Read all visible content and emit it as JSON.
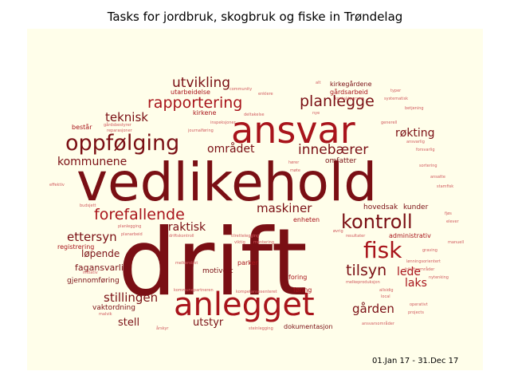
{
  "title": "Tasks for jordbruk, skogbruk og fiske in Trøndelag",
  "date_range": "01.Jan 17 - 31.Dec 17",
  "colors": {
    "background": "#fffeea",
    "dark": "#7a0f14",
    "mid": "#a8141b",
    "light": "#d05a5e"
  },
  "words": [
    {
      "text": "drift"
    },
    {
      "text": "vedlikehold"
    },
    {
      "text": "ansvar"
    },
    {
      "text": "anlegget"
    },
    {
      "text": "oppfølging"
    },
    {
      "text": "kontroll"
    },
    {
      "text": "fisk"
    },
    {
      "text": "forefallende"
    },
    {
      "text": "rapportering"
    },
    {
      "text": "planlegge"
    },
    {
      "text": "tilsyn"
    },
    {
      "text": "utvikling"
    },
    {
      "text": "innebærer"
    },
    {
      "text": "maskiner"
    },
    {
      "text": "stillingen"
    },
    {
      "text": "ettersyn"
    },
    {
      "text": "teknisk"
    },
    {
      "text": "området"
    },
    {
      "text": "kommunene"
    },
    {
      "text": "røkting"
    },
    {
      "text": "laks"
    },
    {
      "text": "gården"
    },
    {
      "text": "lede"
    },
    {
      "text": "praktisk"
    },
    {
      "text": "stell"
    },
    {
      "text": "utstyr"
    },
    {
      "text": "løpende"
    },
    {
      "text": "fagansvarlig"
    },
    {
      "text": "gjennomføring"
    },
    {
      "text": "vaktordning"
    },
    {
      "text": "registrering"
    },
    {
      "text": "omfatter"
    },
    {
      "text": "hovedsak"
    },
    {
      "text": "kunder"
    },
    {
      "text": "administrativ"
    },
    {
      "text": "enheten"
    },
    {
      "text": "motivert"
    },
    {
      "text": "parker"
    },
    {
      "text": "dokumentasjon"
    },
    {
      "text": "føring"
    },
    {
      "text": "foring"
    },
    {
      "text": "kirkegårdene"
    },
    {
      "text": "gårdsarbeid"
    },
    {
      "text": "utarbeidelse"
    },
    {
      "text": "kirkene"
    },
    {
      "text": "består"
    },
    {
      "text": "effektiv"
    },
    {
      "text": "budsjett"
    },
    {
      "text": "planlegging"
    },
    {
      "text": "planarbeid"
    },
    {
      "text": "driftskontroll"
    },
    {
      "text": "tilrettelegging"
    },
    {
      "text": "melkerobot"
    },
    {
      "text": "kommunepartneren"
    },
    {
      "text": "kompetansesenteret"
    },
    {
      "text": "årskyr"
    },
    {
      "text": "steinlegging"
    },
    {
      "text": "ansvarsområder"
    },
    {
      "text": "melkeproduksjon"
    },
    {
      "text": "resultater"
    },
    {
      "text": "sortering"
    },
    {
      "text": "forsvarlig"
    },
    {
      "text": "ansvarlig"
    },
    {
      "text": "ansatte"
    },
    {
      "text": "stamfisk"
    },
    {
      "text": "elever"
    },
    {
      "text": "fjøs"
    },
    {
      "text": "manuell"
    },
    {
      "text": "friluftsområder"
    },
    {
      "text": "lønningsorientert"
    },
    {
      "text": "nytenking"
    },
    {
      "text": "operativt"
    },
    {
      "text": "projects"
    },
    {
      "text": "graving"
    },
    {
      "text": "betjening"
    },
    {
      "text": "generell"
    },
    {
      "text": "systematisk"
    },
    {
      "text": "kontaktperson"
    },
    {
      "text": "typer"
    },
    {
      "text": "inspeksjoner"
    },
    {
      "text": "journalføring"
    },
    {
      "text": "reparasjoner"
    },
    {
      "text": "gårdsbestyrer"
    },
    {
      "text": "deltakelse"
    },
    {
      "text": "community"
    },
    {
      "text": "enklere"
    },
    {
      "text": "alt"
    },
    {
      "text": "nye"
    },
    {
      "text": "viktig"
    },
    {
      "text": "montering"
    },
    {
      "text": "møte"
    },
    {
      "text": "hører"
    },
    {
      "text": "øvrig"
    },
    {
      "text": "local"
    },
    {
      "text": "allsidig"
    },
    {
      "text": "malvik"
    },
    {
      "text": "initiativ"
    }
  ]
}
